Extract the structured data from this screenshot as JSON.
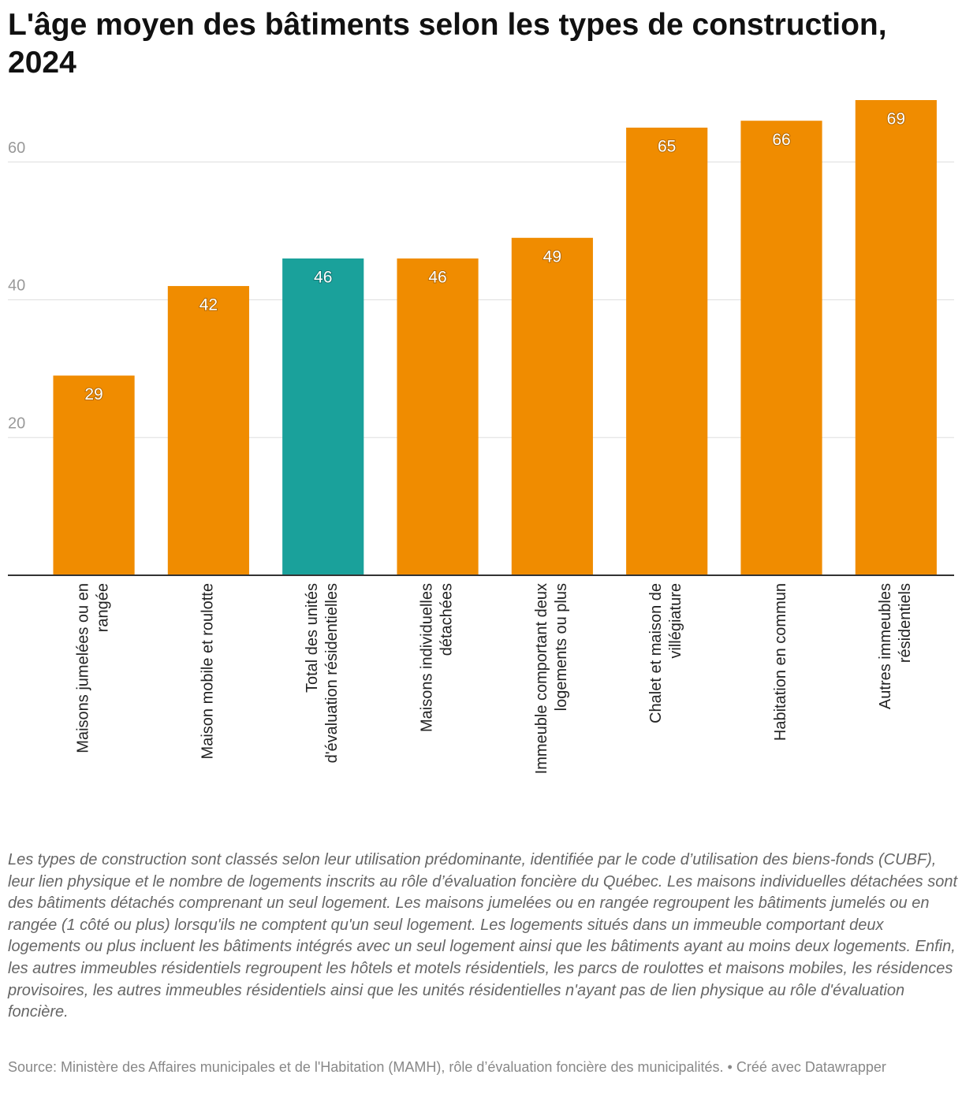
{
  "chart_data": {
    "type": "bar",
    "title": "L'âge moyen des bâtiments selon les types de construction, 2024",
    "categories": [
      "Maisons jumelées ou en rangée",
      "Maison mobile et roulotte",
      "Total des unités d'évaluation résidentielles",
      "Maisons individuelles détachées",
      "Immeuble comportant deux logements ou plus",
      "Chalet et maison de villégiature",
      "Habitation en commun",
      "Autres immeubles résidentiels"
    ],
    "values": [
      29,
      42,
      46,
      46,
      49,
      65,
      66,
      69
    ],
    "colors": [
      "#f08c00",
      "#f08c00",
      "#1aa19b",
      "#f08c00",
      "#f08c00",
      "#f08c00",
      "#f08c00",
      "#f08c00"
    ],
    "ylim": [
      0,
      69
    ],
    "yticks": [
      20,
      40,
      60
    ],
    "grid": true,
    "note": "Les types de construction sont classés selon leur utilisation prédominante, identifiée par le code d’utilisation des biens-fonds (CUBF), leur lien physique et le nombre de logements inscrits au rôle d’évaluation foncière du Québec. Les maisons individuelles détachées sont des bâtiments détachés comprenant un seul logement. Les maisons jumelées ou en rangée regroupent les bâtiments jumelés ou en rangée (1 côté ou plus) lorsqu'ils ne comptent qu'un seul logement. Les logements situés dans un immeuble comportant deux logements ou plus incluent les bâtiments intégrés avec un seul logement ainsi que les bâtiments ayant au moins deux logements. Enfin, les autres immeubles résidentiels regroupent les hôtels et motels résidentiels, les parcs de roulottes et maisons mobiles, les résidences provisoires, les autres immeubles résidentiels ainsi que les unités résidentielles n'ayant pas de lien physique au rôle d'évaluation foncière.",
    "source": "Source: Ministère des Affaires municipales et de l'Habitation (MAMH), rôle d’évaluation foncière des municipalités. • Créé avec Datawrapper"
  }
}
